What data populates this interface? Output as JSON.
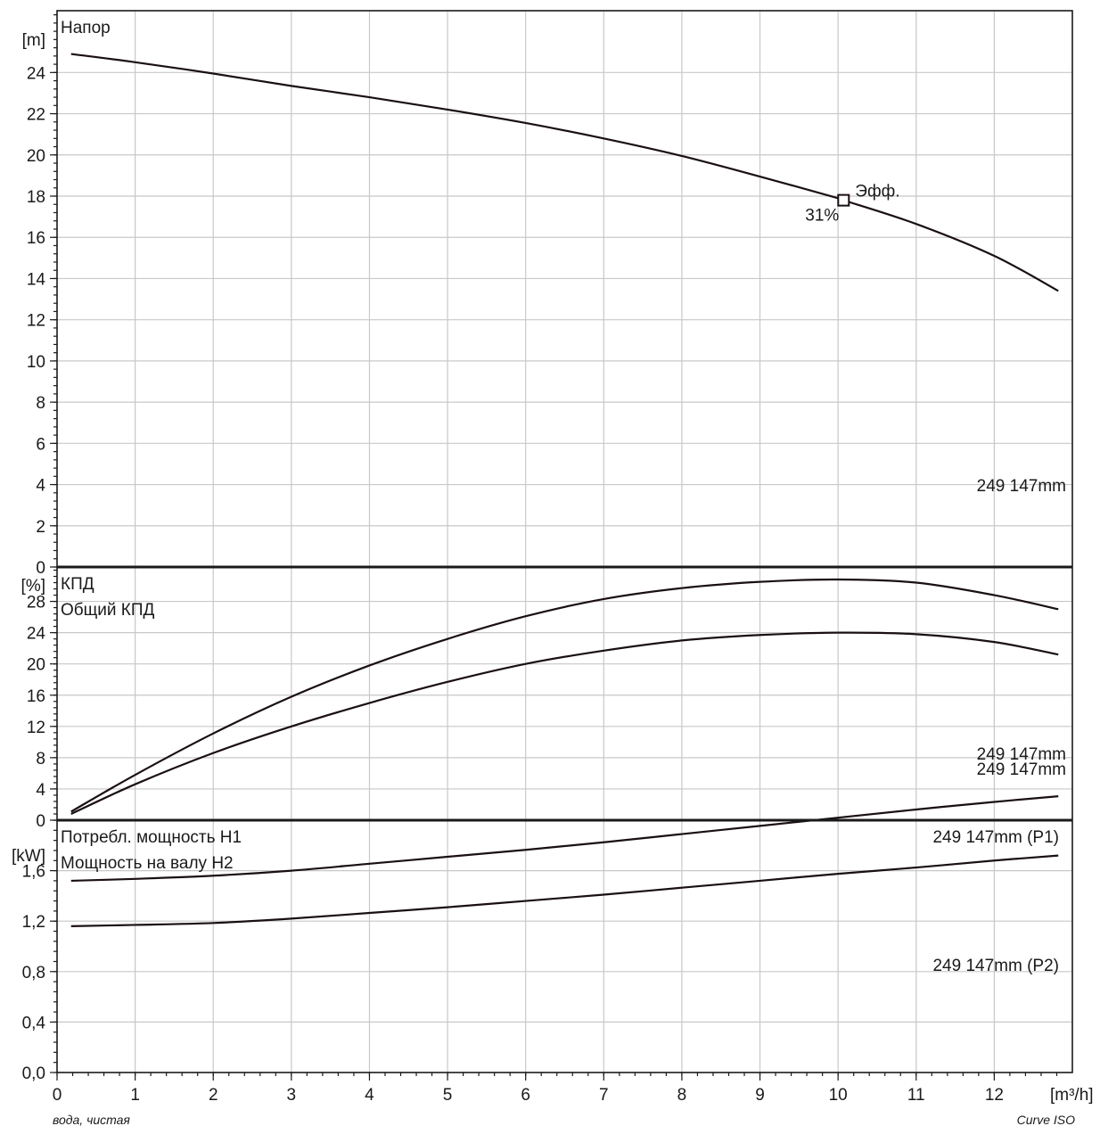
{
  "chart_data": {
    "type": "line",
    "x_unit": "[m³/h]",
    "x_ticks": [
      "0",
      "1",
      "2",
      "3",
      "4",
      "5",
      "6",
      "7",
      "8",
      "9",
      "10",
      "11",
      "12"
    ],
    "xlim": [
      0,
      13
    ],
    "footer_left": "вода, чистая",
    "footer_right": "Curve ISO",
    "panels": [
      {
        "id": "head",
        "unit": "[m]",
        "ylim": [
          0,
          27
        ],
        "y_ticks": [
          0,
          2,
          4,
          6,
          8,
          10,
          12,
          14,
          16,
          18,
          20,
          22,
          24
        ],
        "y_tick_labels": [
          "0",
          "2",
          "4",
          "6",
          "8",
          "10",
          "12",
          "14",
          "16",
          "18",
          "20",
          "22",
          "24"
        ],
        "labels": [
          "Напор"
        ],
        "series": [
          {
            "curve_label": "249 147mm",
            "x": [
              0.18,
              1,
              2,
              3,
              4,
              5,
              6,
              7,
              8,
              9,
              10,
              10.07,
              11,
              12,
              12.82
            ],
            "y": [
              24.9,
              24.5,
              23.95,
              23.35,
              22.8,
              22.2,
              21.55,
              20.8,
              19.95,
              18.95,
              17.9,
              17.8,
              16.65,
              15.1,
              13.4
            ]
          }
        ],
        "marker": {
          "x": 10.07,
          "y": 17.8,
          "label": "Эфф.",
          "value_label": "31%"
        }
      },
      {
        "id": "efficiency",
        "unit": "[%]",
        "ylim": [
          0,
          32.4
        ],
        "y_ticks": [
          0,
          4,
          8,
          12,
          16,
          20,
          24,
          28
        ],
        "y_tick_labels": [
          "0",
          "4",
          "8",
          "12",
          "16",
          "20",
          "24",
          "28"
        ],
        "labels": [
          "КПД",
          "Общий КПД"
        ],
        "series": [
          {
            "curve_label": "249 147mm",
            "x": [
              0.18,
              1,
              2,
              3,
              4,
              5,
              6,
              7,
              8,
              9,
              10,
              11,
              12,
              12.82
            ],
            "y": [
              1.1,
              5.8,
              11.1,
              15.8,
              19.8,
              23.2,
              26.1,
              28.3,
              29.7,
              30.5,
              30.8,
              30.4,
              28.8,
              27.0
            ]
          },
          {
            "curve_label": "249 147mm",
            "x": [
              0.18,
              1,
              2,
              3,
              4,
              5,
              6,
              7,
              8,
              9,
              10,
              11,
              12,
              12.82
            ],
            "y": [
              0.8,
              4.6,
              8.6,
              12.0,
              15.0,
              17.7,
              20.0,
              21.7,
              23.0,
              23.7,
              24.0,
              23.8,
              22.8,
              21.2
            ]
          }
        ]
      },
      {
        "id": "power",
        "unit": "[kW]",
        "ylim": [
          0,
          2.0
        ],
        "y_ticks": [
          0,
          0.4,
          0.8,
          1.2,
          1.6
        ],
        "y_tick_labels": [
          "0,0",
          "0,4",
          "0,8",
          "1,2",
          "1,6"
        ],
        "labels": [
          "Потребл. мощность H1",
          "Мощность на валу H2"
        ],
        "series": [
          {
            "curve_label": "249 147mm (P1)",
            "x": [
              0.18,
              1,
              2,
              3,
              4,
              5,
              6,
              7,
              8,
              9,
              10,
              11,
              12,
              12.82
            ],
            "y": [
              1.52,
              1.535,
              1.56,
              1.6,
              1.655,
              1.71,
              1.765,
              1.825,
              1.89,
              1.955,
              2.02,
              2.085,
              2.145,
              2.19
            ]
          },
          {
            "curve_label": "249 147mm (P2)",
            "x": [
              0.18,
              1,
              2,
              3,
              4,
              5,
              6,
              7,
              8,
              9,
              10,
              11,
              12,
              12.82
            ],
            "y": [
              1.16,
              1.17,
              1.185,
              1.22,
              1.265,
              1.31,
              1.36,
              1.41,
              1.465,
              1.52,
              1.575,
              1.625,
              1.68,
              1.72
            ]
          }
        ]
      }
    ]
  }
}
